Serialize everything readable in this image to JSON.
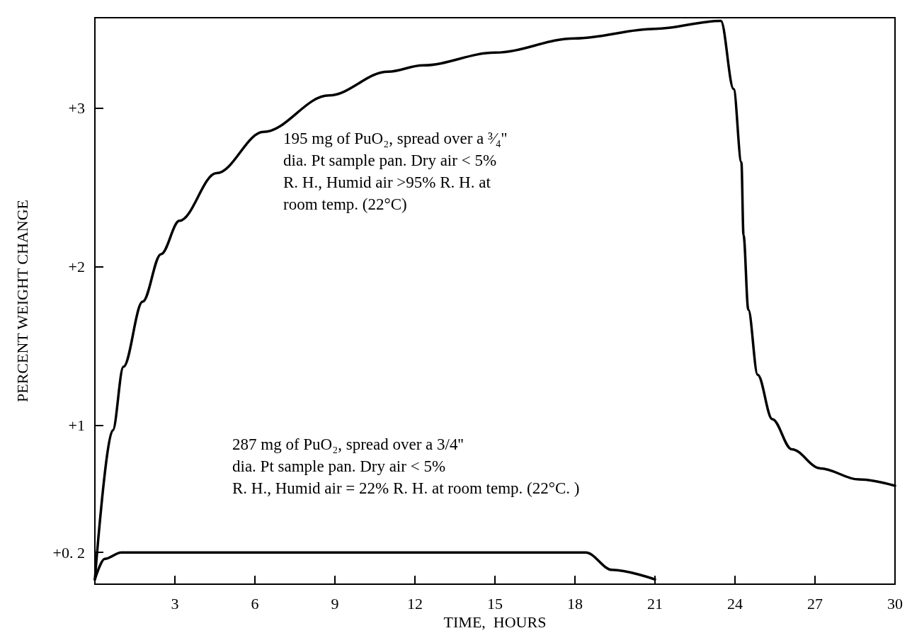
{
  "chart_data": {
    "type": "line",
    "xlabel": "TIME,  HOURS",
    "ylabel": "PERCENT WEIGHT CHANGE",
    "xlim": [
      0,
      30
    ],
    "ylim": [
      0,
      3.57
    ],
    "xticks": [
      3,
      6,
      9,
      12,
      15,
      18,
      21,
      24,
      27,
      30
    ],
    "yticks": [
      {
        "value": 0.2,
        "label": "+0. 2"
      },
      {
        "value": 1,
        "label": "+1"
      },
      {
        "value": 2,
        "label": "+2"
      },
      {
        "value": 3,
        "label": "+3"
      }
    ],
    "grid": false,
    "marker": "none",
    "line_style": "solid",
    "series": [
      {
        "color": "#000000",
        "x": [
          0,
          0.67,
          1.07,
          1.79,
          2.48,
          3.17,
          4.56,
          6.32,
          8.77,
          10.99,
          12.3,
          15,
          18,
          21,
          23.47,
          23.95,
          24.24,
          24.32,
          24.5,
          24.85,
          25.4,
          26.13,
          27.2,
          28.64,
          30
        ],
        "values": [
          0.03,
          0.97,
          1.37,
          1.78,
          2.08,
          2.29,
          2.59,
          2.85,
          3.08,
          3.23,
          3.27,
          3.35,
          3.44,
          3.5,
          3.55,
          3.12,
          2.66,
          2.2,
          1.73,
          1.32,
          1.04,
          0.85,
          0.73,
          0.66,
          0.62
        ]
      },
      {
        "color": "#000000",
        "x": [
          0,
          0.37,
          0.99,
          18.4,
          19.4,
          21
        ],
        "values": [
          0.03,
          0.16,
          0.2,
          0.2,
          0.09,
          0.03
        ]
      }
    ],
    "annotations": [
      "195 mg of PuO₂, spread over a ³⁄₄'' \ndia. Pt sample pan. Dry air < 5%\nR. H., Humid air >95% R. H. at\nroom temp. (22°C)",
      "287 mg of PuO₂, spread over a 3/4'' \ndia. Pt sample pan. Dry air < 5%\nR. H., Humid air = 22% R. H. at room temp. (22°C. )"
    ]
  }
}
